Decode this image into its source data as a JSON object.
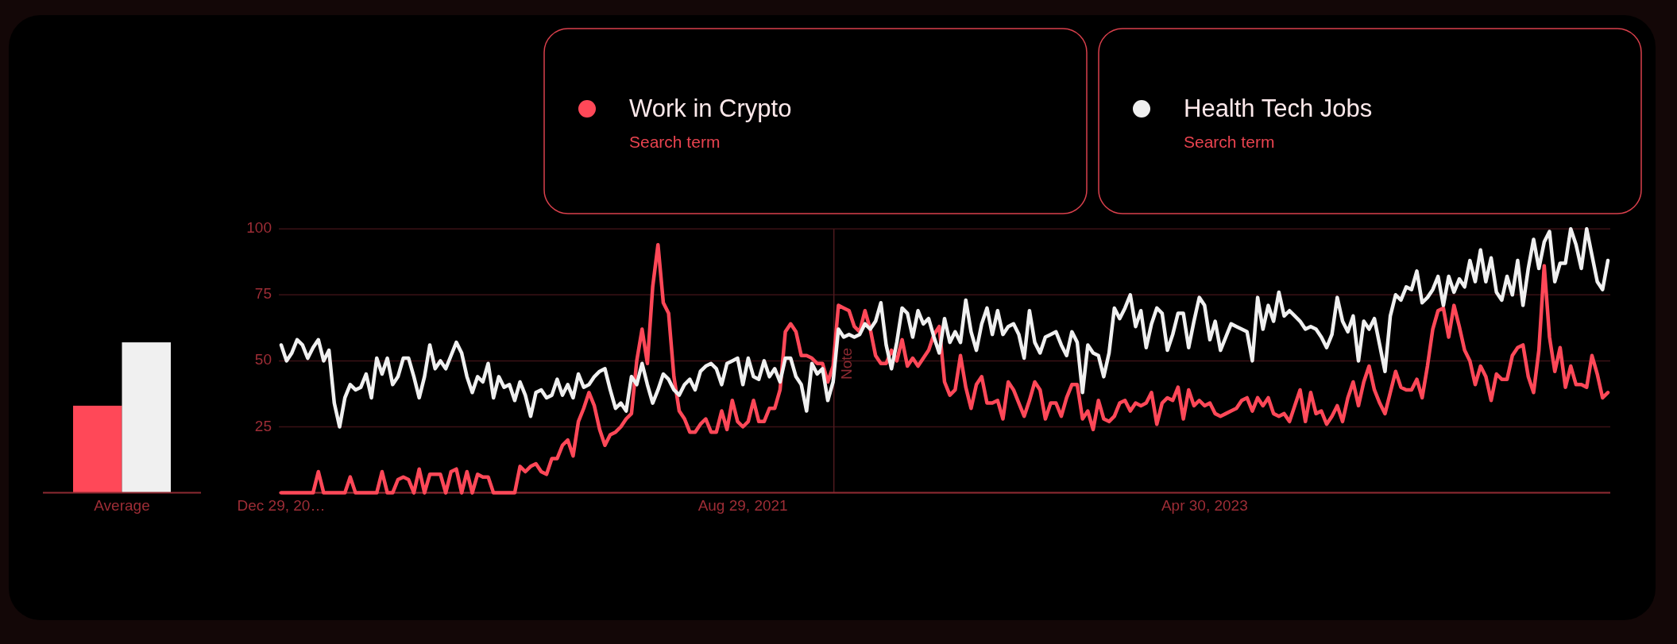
{
  "chart_data": [
    {
      "type": "bar",
      "categories": [
        "Average"
      ],
      "series": [
        {
          "color": "#ff4858",
          "values": [
            33
          ]
        },
        {
          "color": "#f0f0f0",
          "values": [
            57
          ]
        }
      ],
      "ylim": [
        0,
        100
      ],
      "tick_labels": "x"
    },
    {
      "type": "line",
      "x": [
        "2019-12-29",
        "2020-01-05",
        "2020-01-12",
        "2020-01-19",
        "2020-01-26",
        "2020-02-02",
        "2020-02-09",
        "2020-02-16",
        "2020-02-23",
        "2020-03-01",
        "2020-03-08",
        "2020-03-15",
        "2020-03-22",
        "2020-03-29",
        "2020-04-05",
        "2020-04-12",
        "2020-04-19",
        "2020-04-26",
        "2020-05-03",
        "2020-05-10",
        "2020-05-17",
        "2020-05-24",
        "2020-05-31",
        "2020-06-07",
        "2020-06-14",
        "2020-06-21",
        "2020-06-28",
        "2020-07-05",
        "2020-07-12",
        "2020-07-19",
        "2020-07-26",
        "2020-08-02",
        "2020-08-09",
        "2020-08-16",
        "2020-08-23",
        "2020-08-30",
        "2020-09-06",
        "2020-09-13",
        "2020-09-20",
        "2020-09-27",
        "2020-10-04",
        "2020-10-11",
        "2020-10-18",
        "2020-10-25",
        "2020-11-01",
        "2020-11-08",
        "2020-11-15",
        "2020-11-22",
        "2020-11-29",
        "2020-12-06",
        "2020-12-13",
        "2020-12-20",
        "2020-12-27",
        "2021-01-03",
        "2021-01-10",
        "2021-01-17",
        "2021-01-24",
        "2021-01-31",
        "2021-02-07",
        "2021-02-14",
        "2021-02-21",
        "2021-02-28",
        "2021-03-07",
        "2021-03-14",
        "2021-03-21",
        "2021-03-28",
        "2021-04-04",
        "2021-04-11",
        "2021-04-18",
        "2021-04-25",
        "2021-05-02",
        "2021-05-09",
        "2021-05-16",
        "2021-05-23",
        "2021-05-30",
        "2021-06-06",
        "2021-06-13",
        "2021-06-20",
        "2021-06-27",
        "2021-07-04",
        "2021-07-11",
        "2021-07-18",
        "2021-07-25",
        "2021-08-01",
        "2021-08-08",
        "2021-08-15",
        "2021-08-22",
        "2021-08-29",
        "2021-09-05",
        "2021-09-12",
        "2021-09-19",
        "2021-09-26",
        "2021-10-03",
        "2021-10-10",
        "2021-10-17",
        "2021-10-24",
        "2021-10-31",
        "2021-11-07",
        "2021-11-14",
        "2021-11-21",
        "2021-11-28",
        "2021-12-05",
        "2021-12-12",
        "2021-12-19",
        "2021-12-26",
        "2022-01-02",
        "2022-01-09",
        "2022-01-16",
        "2022-01-23",
        "2022-01-30",
        "2022-02-06",
        "2022-02-13",
        "2022-02-20",
        "2022-02-27",
        "2022-03-06",
        "2022-03-13",
        "2022-03-20",
        "2022-03-27",
        "2022-04-03",
        "2022-04-10",
        "2022-04-17",
        "2022-04-24",
        "2022-05-01",
        "2022-05-08",
        "2022-05-15",
        "2022-05-22",
        "2022-05-29",
        "2022-06-05",
        "2022-06-12",
        "2022-06-19",
        "2022-06-26",
        "2022-07-03",
        "2022-07-10",
        "2022-07-17",
        "2022-07-24",
        "2022-07-31",
        "2022-08-07",
        "2022-08-14",
        "2022-08-21",
        "2022-08-28",
        "2022-09-04",
        "2022-09-11",
        "2022-09-18",
        "2022-09-25",
        "2022-10-02",
        "2022-10-09",
        "2022-10-16",
        "2022-10-23",
        "2022-10-30",
        "2022-11-06",
        "2022-11-13",
        "2022-11-20",
        "2022-11-27",
        "2022-12-04",
        "2022-12-11",
        "2022-12-18",
        "2022-12-25",
        "2023-01-01",
        "2023-01-08",
        "2023-01-15",
        "2023-01-22",
        "2023-01-29",
        "2023-02-05",
        "2023-02-12",
        "2023-02-19",
        "2023-02-26",
        "2023-03-05",
        "2023-03-12",
        "2023-03-19",
        "2023-03-26",
        "2023-04-02",
        "2023-04-09",
        "2023-04-16",
        "2023-04-23",
        "2023-04-30",
        "2023-05-07",
        "2023-05-14",
        "2023-05-21",
        "2023-05-28",
        "2023-06-04",
        "2023-06-11",
        "2023-06-18",
        "2023-06-25",
        "2023-07-02",
        "2023-07-09",
        "2023-07-16",
        "2023-07-23",
        "2023-07-30",
        "2023-08-06",
        "2023-08-13",
        "2023-08-20",
        "2023-08-27",
        "2023-09-03",
        "2023-09-10",
        "2023-09-17",
        "2023-09-24",
        "2023-10-01",
        "2023-10-08",
        "2023-10-15",
        "2023-10-22",
        "2023-10-29",
        "2023-11-05",
        "2023-11-12",
        "2023-11-19",
        "2023-11-26",
        "2023-12-03",
        "2023-12-10",
        "2023-12-17",
        "2023-12-24",
        "2023-12-31",
        "2024-01-07",
        "2024-01-14",
        "2024-01-21",
        "2024-01-28",
        "2024-02-04",
        "2024-02-11",
        "2024-02-18",
        "2024-02-25",
        "2024-03-03",
        "2024-03-10",
        "2024-03-17",
        "2024-03-24",
        "2024-03-31",
        "2024-04-07",
        "2024-04-14",
        "2024-04-21",
        "2024-04-28",
        "2024-05-05",
        "2024-05-12",
        "2024-05-19",
        "2024-05-26",
        "2024-06-02",
        "2024-06-09",
        "2024-06-16",
        "2024-06-23",
        "2024-06-30",
        "2024-07-07",
        "2024-07-14",
        "2024-07-21",
        "2024-07-28",
        "2024-08-04",
        "2024-08-11",
        "2024-08-18",
        "2024-08-25",
        "2024-09-01",
        "2024-09-08",
        "2024-09-15",
        "2024-09-22",
        "2024-09-29",
        "2024-10-06",
        "2024-10-13"
      ],
      "series": [
        {
          "name": "Work in Crypto",
          "color": "#ff4858",
          "values": [
            0,
            0,
            0,
            0,
            0,
            0,
            0,
            8,
            0,
            0,
            0,
            0,
            0,
            6,
            0,
            0,
            0,
            0,
            0,
            8,
            0,
            0,
            5,
            6,
            5,
            0,
            9,
            0,
            7,
            7,
            7,
            0,
            8,
            9,
            0,
            8,
            0,
            7,
            6,
            6,
            0,
            0,
            0,
            0,
            0,
            10,
            8,
            10,
            11,
            8,
            7,
            13,
            13,
            18,
            20,
            14,
            27,
            32,
            38,
            33,
            24,
            18,
            22,
            23,
            25,
            28,
            30,
            50,
            62,
            49,
            78,
            94,
            72,
            68,
            44,
            31,
            28,
            23,
            23,
            26,
            28,
            23,
            23,
            31,
            24,
            35,
            27,
            25,
            27,
            35,
            27,
            27,
            32,
            32,
            39,
            61,
            64,
            61,
            52,
            52,
            51,
            49,
            49,
            42,
            48,
            71,
            70,
            69,
            63,
            61,
            69,
            62,
            52,
            49,
            49,
            54,
            50,
            58,
            48,
            51,
            48,
            51,
            54,
            60,
            63,
            42,
            37,
            39,
            52,
            40,
            32,
            41,
            44,
            34,
            34,
            35,
            28,
            42,
            39,
            34,
            29,
            35,
            42,
            39,
            28,
            34,
            34,
            29,
            36,
            41,
            41,
            28,
            31,
            24,
            35,
            28,
            27,
            29,
            34,
            35,
            31,
            34,
            33,
            34,
            38,
            26,
            34,
            36,
            35,
            40,
            28,
            39,
            33,
            35,
            33,
            34,
            30,
            29,
            30,
            31,
            32,
            35,
            36,
            31,
            36,
            33,
            36,
            30,
            29,
            30,
            27,
            33,
            39,
            27,
            38,
            30,
            31,
            26,
            29,
            33,
            27,
            36,
            42,
            33,
            42,
            48,
            39,
            34,
            30,
            38,
            46,
            40,
            39,
            39,
            43,
            36,
            48,
            62,
            69,
            70,
            59,
            71,
            63,
            54,
            50,
            41,
            48,
            44,
            35,
            45,
            43,
            43,
            52,
            55,
            56,
            44,
            38,
            54,
            86,
            59,
            46,
            55,
            40,
            48,
            41,
            41,
            40,
            52,
            45,
            36,
            38
          ]
        },
        {
          "name": "Health Tech Jobs",
          "color": "#f0f0f0",
          "values": [
            56,
            50,
            53,
            58,
            56,
            51,
            55,
            58,
            50,
            54,
            34,
            25,
            36,
            41,
            39,
            40,
            45,
            36,
            51,
            45,
            51,
            41,
            44,
            51,
            51,
            44,
            36,
            44,
            56,
            47,
            50,
            47,
            52,
            57,
            53,
            44,
            38,
            44,
            42,
            49,
            36,
            44,
            40,
            41,
            35,
            42,
            37,
            29,
            38,
            39,
            36,
            37,
            43,
            37,
            41,
            36,
            45,
            40,
            41,
            44,
            46,
            47,
            39,
            32,
            34,
            31,
            44,
            41,
            49,
            41,
            34,
            39,
            45,
            43,
            39,
            37,
            41,
            43,
            39,
            46,
            48,
            49,
            47,
            41,
            49,
            50,
            51,
            41,
            51,
            44,
            43,
            50,
            44,
            47,
            42,
            51,
            51,
            44,
            41,
            31,
            49,
            45,
            47,
            35,
            42,
            62,
            59,
            60,
            59,
            60,
            64,
            62,
            65,
            72,
            56,
            47,
            57,
            70,
            68,
            59,
            69,
            64,
            66,
            59,
            53,
            66,
            57,
            61,
            57,
            73,
            61,
            54,
            64,
            70,
            60,
            69,
            60,
            63,
            64,
            60,
            51,
            69,
            57,
            53,
            59,
            60,
            61,
            56,
            52,
            61,
            57,
            38,
            56,
            53,
            52,
            44,
            53,
            70,
            66,
            70,
            75,
            63,
            69,
            55,
            64,
            70,
            68,
            54,
            60,
            68,
            68,
            55,
            65,
            74,
            71,
            58,
            65,
            54,
            59,
            64,
            63,
            62,
            61,
            50,
            74,
            62,
            71,
            65,
            76,
            67,
            69,
            67,
            65,
            62,
            63,
            62,
            59,
            55,
            60,
            74,
            65,
            61,
            67,
            50,
            65,
            62,
            66,
            56,
            46,
            67,
            75,
            73,
            78,
            77,
            84,
            72,
            74,
            77,
            82,
            71,
            82,
            76,
            81,
            78,
            88,
            80,
            92,
            80,
            89,
            76,
            73,
            82,
            75,
            88,
            71,
            85,
            96,
            85,
            95,
            99,
            80,
            87,
            87,
            100,
            94,
            85,
            100,
            90,
            80,
            77,
            88
          ]
        }
      ],
      "xlim": [
        "2019-12-29",
        "2024-10-13"
      ],
      "xticks": [
        {
          "value": "2019-12-29",
          "label": "Dec 29, 20…"
        },
        {
          "value": "2021-08-29",
          "label": "Aug 29, 2021"
        },
        {
          "value": "2023-04-30",
          "label": "Apr 30, 2023"
        }
      ],
      "ylim": [
        0,
        100
      ],
      "yticks": [
        {
          "value": 0,
          "label": null
        },
        25,
        50,
        75,
        100
      ],
      "grid": "y",
      "legend": "top",
      "ref_lines": [
        {
          "axis": "x",
          "value": "2021-12-27",
          "label": "Note"
        }
      ],
      "annotations": [
        "Search term",
        "Search term"
      ]
    }
  ]
}
